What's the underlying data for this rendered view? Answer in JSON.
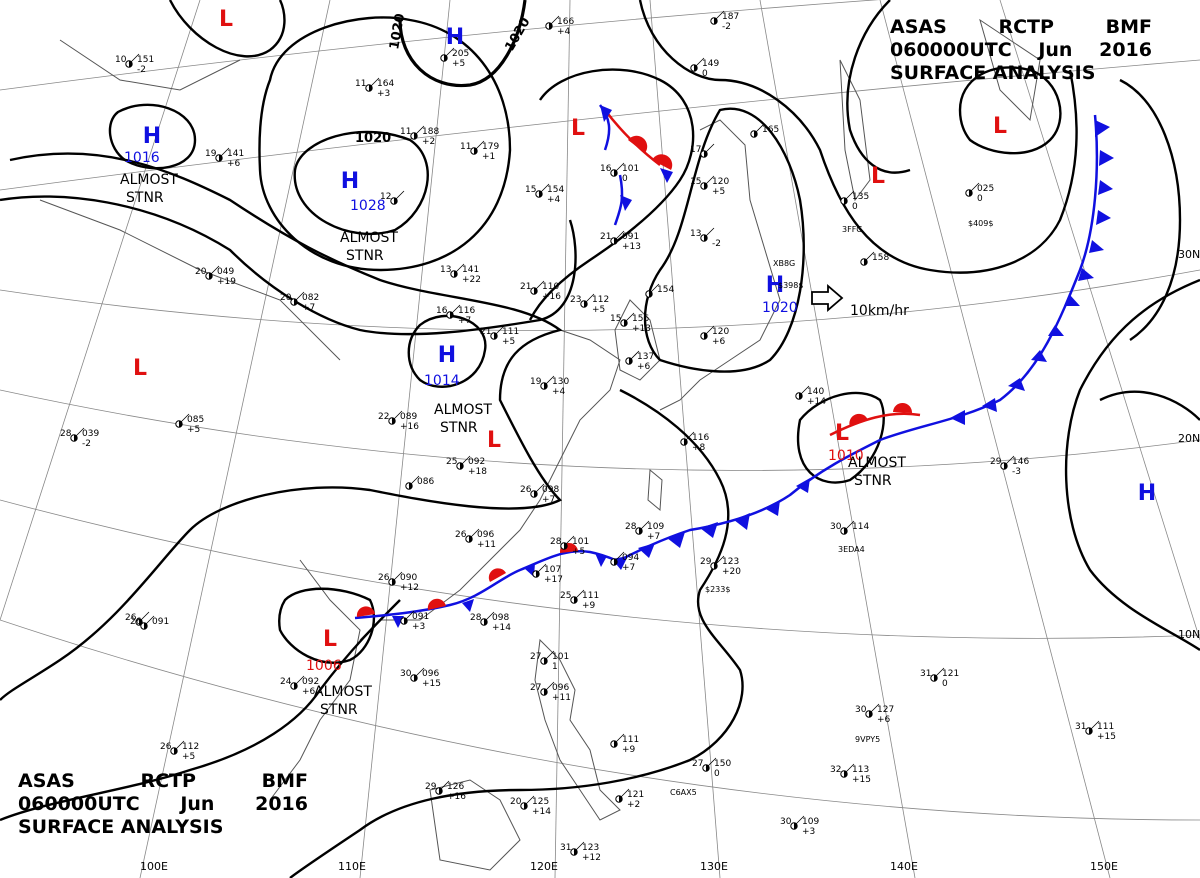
{
  "header": {
    "line1": [
      "ASAS",
      "RCTP",
      "BMF"
    ],
    "line2": [
      "060000UTC",
      "Jun",
      "2016"
    ],
    "line3": "SURFACE ANALYSIS"
  },
  "colors": {
    "high": "#1010e0",
    "low": "#e01010",
    "isobar": "#000000",
    "geo": "#555555"
  },
  "pressure_centers": [
    {
      "type": "H",
      "value": "1016",
      "note": "ALMOST STNR",
      "name": "high-center-north-china"
    },
    {
      "type": "H",
      "value": "1028",
      "note": "ALMOST STNR",
      "name": "high-center-mongolia"
    },
    {
      "type": "H",
      "value": "",
      "note": "",
      "name": "high-center-north"
    },
    {
      "type": "H",
      "value": "1014",
      "note": "ALMOST STNR",
      "name": "high-center-central-china"
    },
    {
      "type": "H",
      "value": "1020",
      "note": "10km/hr",
      "name": "high-center-korea"
    },
    {
      "type": "H",
      "value": "",
      "note": "",
      "name": "high-center-pacific"
    },
    {
      "type": "L",
      "value": "1010",
      "note": "ALMOST STNR",
      "name": "low-center-south-japan"
    },
    {
      "type": "L",
      "value": "1006",
      "note": "ALMOST STNR",
      "name": "low-center-vietnam"
    },
    {
      "type": "L",
      "value": "",
      "note": "",
      "name": "low-center-nw"
    },
    {
      "type": "L",
      "value": "",
      "note": "",
      "name": "low-center-west"
    },
    {
      "type": "L",
      "value": "",
      "note": "",
      "name": "low-center-east-china"
    },
    {
      "type": "L",
      "value": "",
      "note": "",
      "name": "low-center-manchuria"
    },
    {
      "type": "L",
      "value": "",
      "note": "",
      "name": "low-center-sea-of-okhotsk"
    },
    {
      "type": "L",
      "value": "",
      "note": "",
      "name": "low-center-ne"
    }
  ],
  "isobar_labels": [
    "1020",
    "1020",
    "1020"
  ],
  "latitude_labels": [
    "30N",
    "20N",
    "10N"
  ],
  "longitude_labels": [
    "100E",
    "110E",
    "120E",
    "130E",
    "140E",
    "150E"
  ],
  "stations": [
    {
      "t": "10",
      "p": "151",
      "d": "-2"
    },
    {
      "t": "11",
      "p": "164",
      "d": "+3"
    },
    {
      "t": "11",
      "p": "188",
      "d": "+2"
    },
    {
      "t": "11",
      "p": "179",
      "d": "+1"
    },
    {
      "t": "19",
      "p": "141",
      "d": "+6"
    },
    {
      "t": "12",
      "p": "",
      "d": ""
    },
    {
      "t": "",
      "p": "205",
      "d": "+5"
    },
    {
      "t": "",
      "p": "166",
      "d": "+4"
    },
    {
      "t": "15",
      "p": "154",
      "d": "+4"
    },
    {
      "t": "16",
      "p": "101",
      "d": "0"
    },
    {
      "t": "15",
      "p": "120",
      "d": "+5"
    },
    {
      "t": "17",
      "p": "",
      "d": ""
    },
    {
      "t": "21",
      "p": "091",
      "d": "+13"
    },
    {
      "t": "13",
      "p": "",
      "d": "-2"
    },
    {
      "t": "20",
      "p": "049",
      "d": "+19"
    },
    {
      "t": "20",
      "p": "082",
      "d": "+7"
    },
    {
      "t": "13",
      "p": "141",
      "d": "+22"
    },
    {
      "t": "21",
      "p": "110",
      "d": "+16"
    },
    {
      "t": "23",
      "p": "112",
      "d": "+5"
    },
    {
      "t": "16",
      "p": "116",
      "d": "+7"
    },
    {
      "t": "21",
      "p": "111",
      "d": "+5"
    },
    {
      "t": "15",
      "p": "156",
      "d": "+13"
    },
    {
      "t": "",
      "p": "137",
      "d": "+6"
    },
    {
      "t": "19",
      "p": "130",
      "d": "+4"
    },
    {
      "t": "22",
      "p": "089",
      "d": "+16"
    },
    {
      "t": "25",
      "p": "092",
      "d": "+18"
    },
    {
      "t": "26",
      "p": "098",
      "d": "+7"
    },
    {
      "t": "26",
      "p": "096",
      "d": "+11"
    },
    {
      "t": "28",
      "p": "101",
      "d": "+5"
    },
    {
      "t": "28",
      "p": "109",
      "d": "+7"
    },
    {
      "t": "26",
      "p": "090",
      "d": "+12"
    },
    {
      "t": "",
      "p": "107",
      "d": "+17"
    },
    {
      "t": "25",
      "p": "111",
      "d": "+9"
    },
    {
      "t": "28",
      "p": "098",
      "d": "+14"
    },
    {
      "t": "30",
      "p": "096",
      "d": "+15"
    },
    {
      "t": "24",
      "p": "092",
      "d": "+6"
    },
    {
      "t": "29",
      "p": "123",
      "d": "+20"
    },
    {
      "t": "30",
      "p": "114",
      "d": ""
    },
    {
      "t": "29",
      "p": "146",
      "d": "-3"
    },
    {
      "t": "",
      "p": "140",
      "d": "+14"
    },
    {
      "t": "",
      "p": "158",
      "d": ""
    },
    {
      "t": "",
      "p": "135",
      "d": "0"
    },
    {
      "t": "",
      "p": "025",
      "d": "0"
    },
    {
      "t": "28",
      "p": "039",
      "d": "-2"
    },
    {
      "t": "26",
      "p": "",
      "d": ""
    },
    {
      "t": "",
      "p": "086",
      "d": ""
    },
    {
      "t": "27",
      "p": "101",
      "d": "1"
    },
    {
      "t": "27",
      "p": "096",
      "d": "+11"
    },
    {
      "t": "",
      "p": "111",
      "d": "+9"
    },
    {
      "t": "26",
      "p": "112",
      "d": "+5"
    },
    {
      "t": "29",
      "p": "126",
      "d": "+16"
    },
    {
      "t": "20",
      "p": "125",
      "d": "+14"
    },
    {
      "t": "",
      "p": "121",
      "d": "+2"
    },
    {
      "t": "27",
      "p": "150",
      "d": "0"
    },
    {
      "t": "31",
      "p": "123",
      "d": "+12"
    },
    {
      "t": "30",
      "p": "109",
      "d": "+3"
    },
    {
      "t": "32",
      "p": "113",
      "d": "+15"
    },
    {
      "t": "30",
      "p": "127",
      "d": "+6"
    },
    {
      "t": "31",
      "p": "111",
      "d": "+15"
    },
    {
      "t": "31",
      "p": "121",
      "d": "0"
    },
    {
      "t": "",
      "p": "094",
      "d": "+7"
    },
    {
      "t": "",
      "p": "091",
      "d": "+3"
    },
    {
      "t": "26",
      "p": "091",
      "d": ""
    },
    {
      "t": "",
      "p": "085",
      "d": "+5"
    },
    {
      "t": "",
      "p": "116",
      "d": "+8"
    },
    {
      "t": "",
      "p": "120",
      "d": "+6"
    },
    {
      "t": "",
      "p": "154",
      "d": ""
    },
    {
      "t": "",
      "p": "187",
      "d": "-2"
    },
    {
      "t": "",
      "p": "149",
      "d": "0"
    },
    {
      "t": "",
      "p": "165",
      "d": ""
    }
  ],
  "station_codes": [
    "$398$",
    "$233$",
    "$409$",
    "3EDA4",
    "C6AX5",
    "9VPY5",
    "XB8G",
    "3FFG",
    "$705$"
  ]
}
